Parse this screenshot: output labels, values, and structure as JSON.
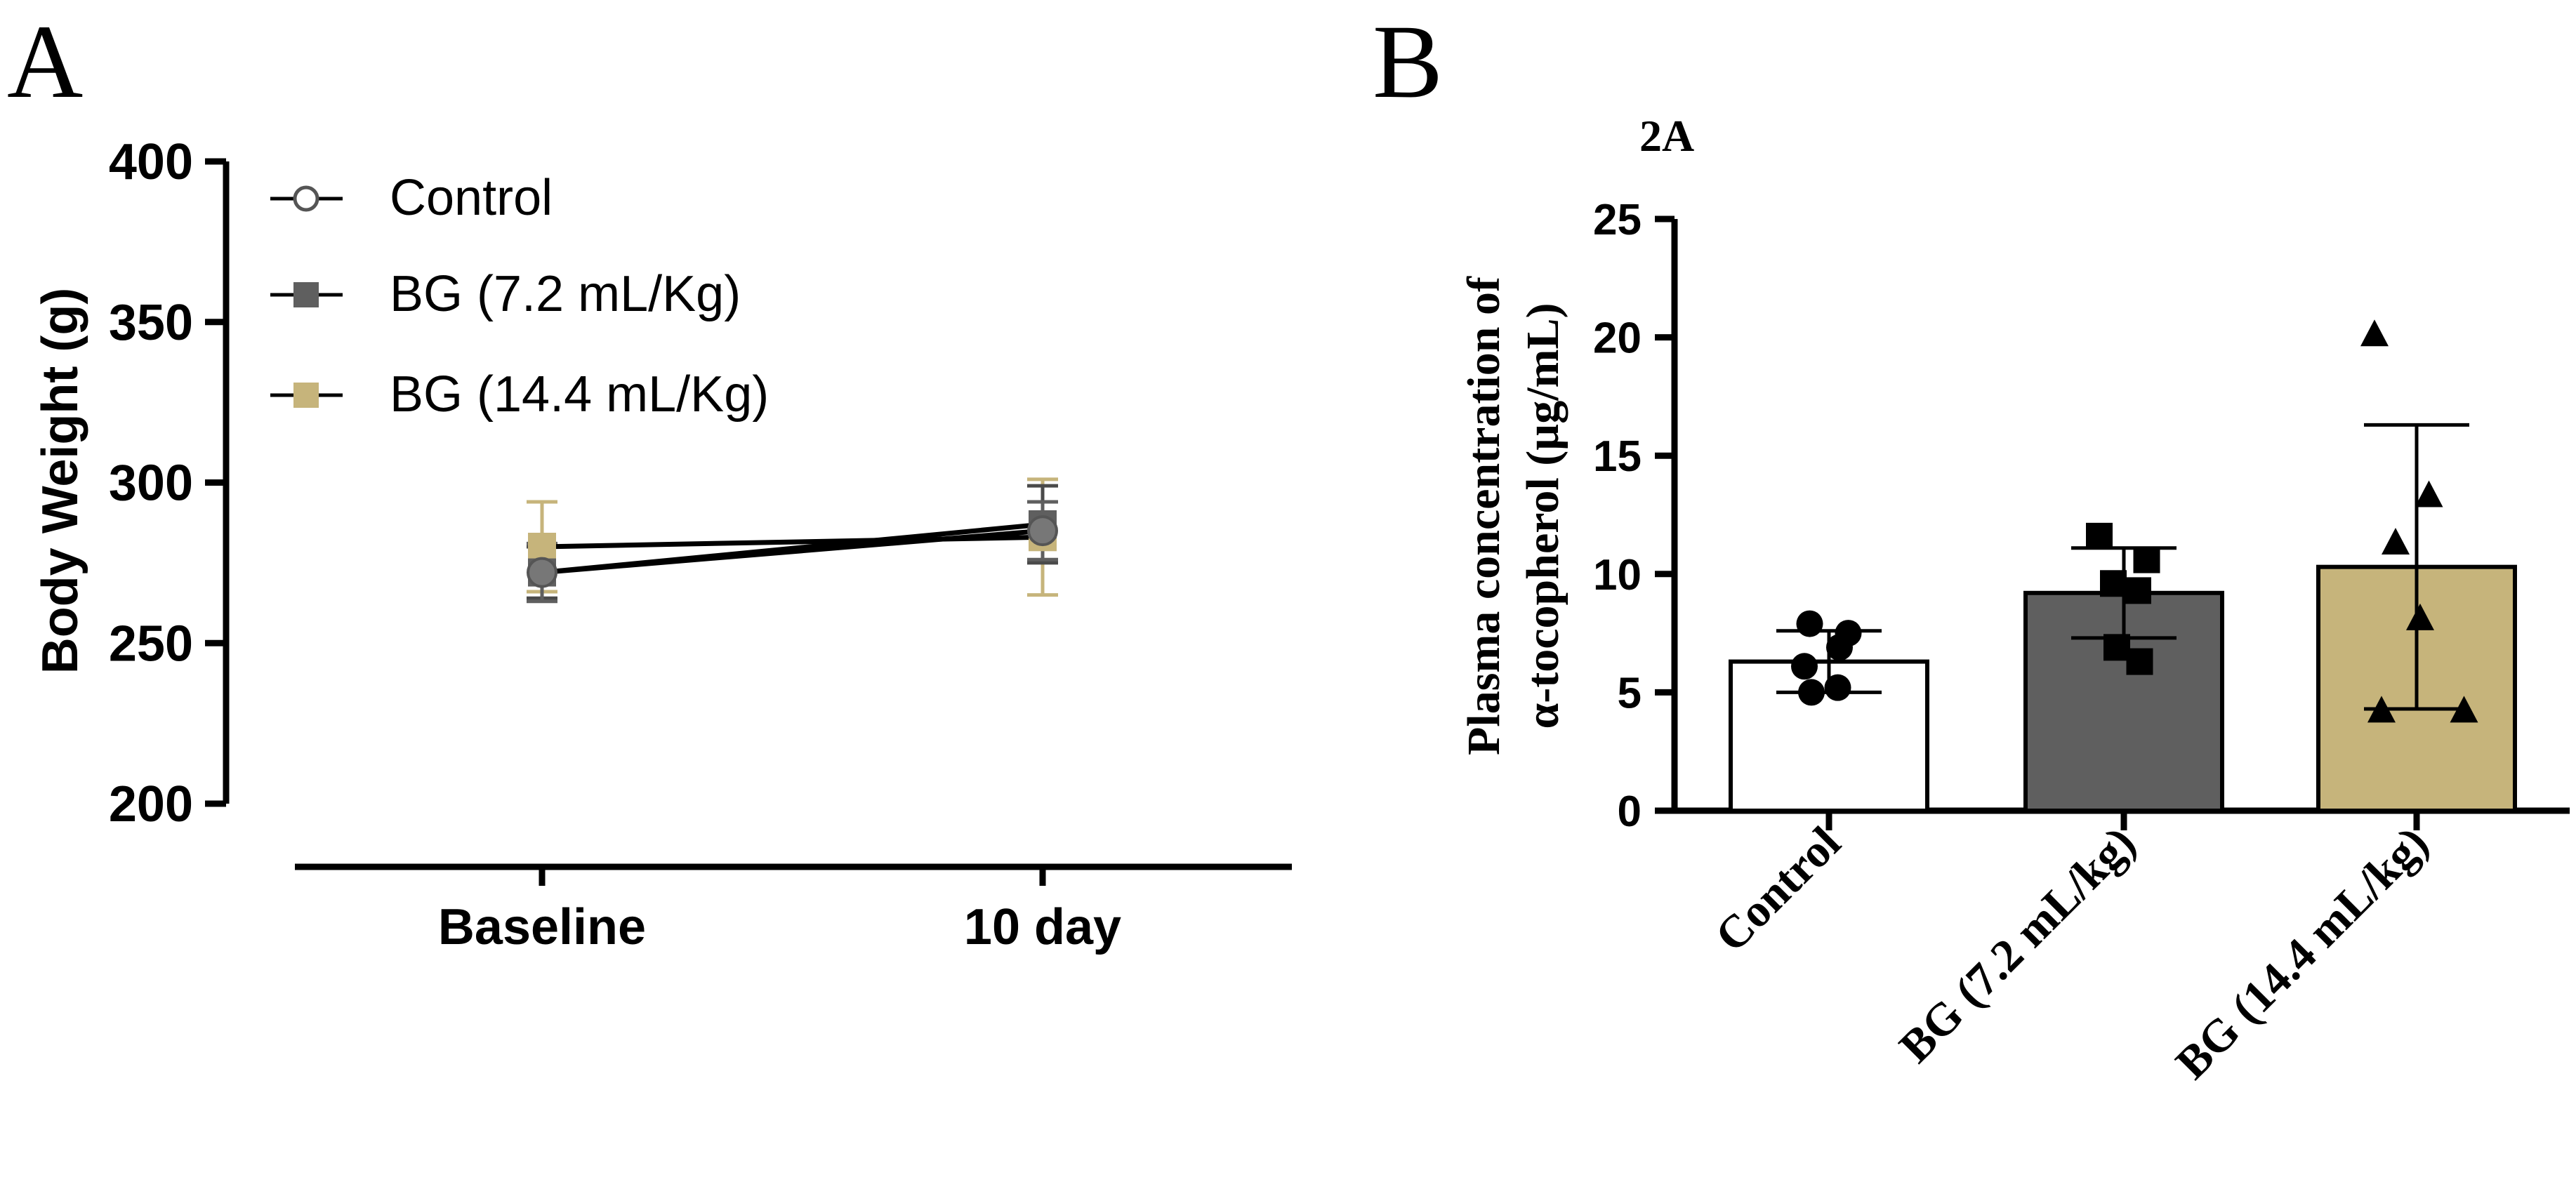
{
  "panels": {
    "a": {
      "letter": "A"
    },
    "b": {
      "letter": "B",
      "subtitle": "2A"
    }
  },
  "colors": {
    "control": "#ffffff",
    "bg72": "#5f5f5f",
    "bg144": "#c6b47b",
    "axis": "#000000"
  },
  "chart_data": [
    {
      "type": "line",
      "panel": "A",
      "title": "",
      "xlabel": "",
      "ylabel": "Body Weight (g)",
      "categories": [
        "Baseline",
        "10 day"
      ],
      "ylim": [
        200,
        400
      ],
      "yticks": [
        "200",
        "250",
        "300",
        "350",
        "400"
      ],
      "legend_position": "top-left",
      "series": [
        {
          "name": "Control",
          "marker": "open-circle",
          "values": [
            272,
            285
          ],
          "error": [
            9,
            9
          ]
        },
        {
          "name": "BG (7.2 mL/Kg)",
          "marker": "square",
          "values": [
            272,
            287
          ],
          "error": [
            8,
            12
          ]
        },
        {
          "name": "BG (14.4 mL/Kg)",
          "marker": "square",
          "values": [
            280,
            283
          ],
          "error": [
            14,
            18
          ]
        }
      ]
    },
    {
      "type": "bar",
      "panel": "B",
      "title": "2A",
      "xlabel": "",
      "ylabel_lines": [
        "Plasma concentration of",
        "α-tocopherol (µg/mL)"
      ],
      "categories": [
        "Control",
        "BG (7.2 mL/kg)",
        "BG (14.4 mL/kg)"
      ],
      "ylim": [
        0,
        25
      ],
      "yticks": [
        "0",
        "5",
        "10",
        "15",
        "20",
        "25"
      ],
      "values": [
        6.3,
        9.2,
        10.3
      ],
      "sd": [
        1.3,
        1.9,
        6.0
      ],
      "points": [
        [
          7.5,
          7.9,
          6.9,
          6.1,
          5.2,
          5.0
        ],
        [
          11.6,
          10.6,
          9.6,
          9.3,
          6.9,
          6.3
        ],
        [
          20.1,
          13.3,
          11.3,
          8.1,
          4.2,
          4.2
        ]
      ],
      "point_markers": [
        "circle",
        "square",
        "triangle"
      ]
    }
  ]
}
